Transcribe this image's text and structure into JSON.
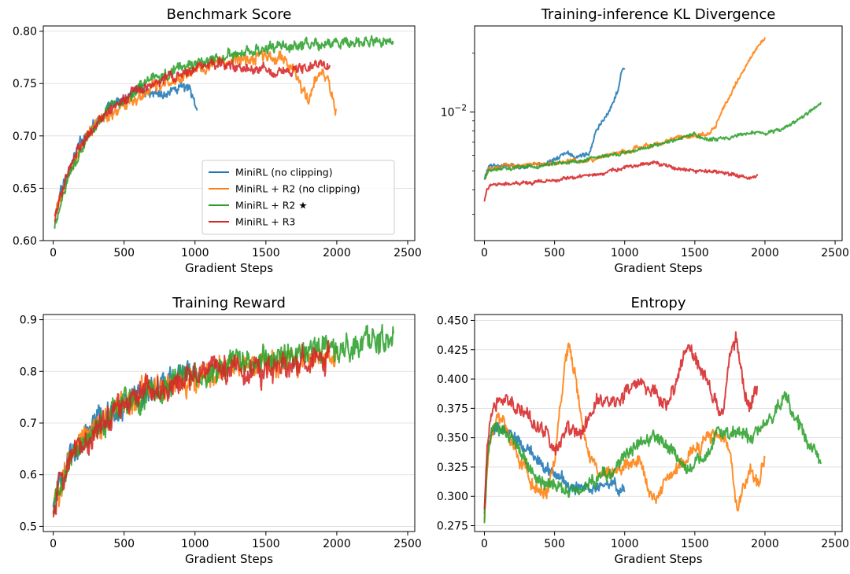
{
  "chart_data": [
    {
      "id": "benchmark",
      "type": "line",
      "title": "Benchmark Score",
      "xlabel": "Gradient Steps",
      "ylabel": "",
      "xlim": [
        -70,
        2550
      ],
      "ylim": [
        0.6,
        0.805
      ],
      "yscale": "linear",
      "xticks": [
        0,
        500,
        1000,
        1500,
        2000,
        2500
      ],
      "xtick_labels": [
        "0",
        "500",
        "1000",
        "1500",
        "2000",
        "2500"
      ],
      "yticks": [
        0.6,
        0.65,
        0.7,
        0.75,
        0.8
      ],
      "ytick_labels": [
        "0.60",
        "0.65",
        "0.70",
        "0.75",
        "0.80"
      ],
      "grid": "y",
      "legend": {
        "position": "lower-right",
        "entries": [
          "MiniRL (no clipping)",
          "MiniRL + R2 (no clipping)",
          "MiniRL + R2 ★",
          "MiniRL + R3"
        ]
      },
      "series": [
        {
          "name": "MiniRL (no clipping)",
          "color": "#1f77b4",
          "noise": 0.006,
          "x": [
            10,
            50,
            100,
            150,
            200,
            300,
            400,
            500,
            550,
            600,
            700,
            800,
            900,
            950,
            1000,
            1020
          ],
          "y": [
            0.62,
            0.645,
            0.665,
            0.68,
            0.695,
            0.715,
            0.725,
            0.735,
            0.74,
            0.745,
            0.742,
            0.74,
            0.748,
            0.745,
            0.73,
            0.72
          ]
        },
        {
          "name": "MiniRL + R2 (no clipping)",
          "color": "#ff7f0e",
          "noise": 0.007,
          "x": [
            10,
            50,
            100,
            200,
            300,
            400,
            500,
            600,
            700,
            800,
            900,
            1000,
            1200,
            1400,
            1600,
            1700,
            1750,
            1800,
            1850,
            1900,
            1950,
            1980,
            2000
          ],
          "y": [
            0.62,
            0.64,
            0.66,
            0.69,
            0.71,
            0.72,
            0.73,
            0.735,
            0.745,
            0.75,
            0.755,
            0.765,
            0.77,
            0.775,
            0.775,
            0.765,
            0.745,
            0.73,
            0.755,
            0.76,
            0.745,
            0.73,
            0.72
          ]
        },
        {
          "name": "MiniRL + R2 ★",
          "color": "#2ca02c",
          "noise": 0.006,
          "x": [
            10,
            50,
            100,
            200,
            300,
            400,
            500,
            600,
            700,
            800,
            900,
            1000,
            1200,
            1400,
            1600,
            1800,
            2000,
            2200,
            2300,
            2400
          ],
          "y": [
            0.61,
            0.635,
            0.66,
            0.69,
            0.71,
            0.725,
            0.735,
            0.745,
            0.755,
            0.76,
            0.765,
            0.77,
            0.775,
            0.78,
            0.785,
            0.785,
            0.79,
            0.79,
            0.792,
            0.79
          ]
        },
        {
          "name": "MiniRL + R3",
          "color": "#d62728",
          "noise": 0.006,
          "x": [
            10,
            50,
            100,
            200,
            300,
            400,
            500,
            600,
            700,
            800,
            900,
            1000,
            1200,
            1400,
            1600,
            1800,
            1900,
            1950
          ],
          "y": [
            0.62,
            0.64,
            0.665,
            0.695,
            0.71,
            0.725,
            0.735,
            0.742,
            0.75,
            0.755,
            0.758,
            0.765,
            0.768,
            0.765,
            0.762,
            0.765,
            0.768,
            0.765
          ]
        }
      ]
    },
    {
      "id": "kl",
      "type": "line",
      "title": "Training-inference KL Divergence",
      "xlabel": "Gradient Steps",
      "ylabel": "",
      "xlim": [
        -70,
        2550
      ],
      "ylim": [
        0.0022,
        0.0275
      ],
      "yscale": "log",
      "xticks": [
        0,
        500,
        1000,
        1500,
        2000,
        2500
      ],
      "xtick_labels": [
        "0",
        "500",
        "1000",
        "1500",
        "2000",
        "2500"
      ],
      "major_yticks": [
        0.01
      ],
      "ytick_labels": [
        "10−2"
      ],
      "minor_yticks": [
        0.003,
        0.004,
        0.005,
        0.006,
        0.007,
        0.008,
        0.009,
        0.02
      ],
      "grid": "none",
      "series": [
        {
          "name": "MiniRL (no clipping)",
          "color": "#1f77b4",
          "noise": 0.03,
          "x": [
            0,
            30,
            100,
            200,
            300,
            400,
            500,
            550,
            600,
            650,
            700,
            750,
            800,
            850,
            900,
            950,
            980,
            1000
          ],
          "y": [
            0.0045,
            0.0052,
            0.0053,
            0.0053,
            0.0052,
            0.0054,
            0.0057,
            0.006,
            0.0061,
            0.0059,
            0.006,
            0.0062,
            0.008,
            0.009,
            0.0105,
            0.013,
            0.0165,
            0.017
          ]
        },
        {
          "name": "MiniRL + R2 (no clipping)",
          "color": "#ff7f0e",
          "noise": 0.03,
          "x": [
            0,
            30,
            100,
            200,
            400,
            600,
            700,
            800,
            1000,
            1200,
            1400,
            1500,
            1600,
            1650,
            1700,
            1750,
            1800,
            1850,
            1900,
            1950,
            2000
          ],
          "y": [
            0.0045,
            0.0052,
            0.0052,
            0.0053,
            0.0054,
            0.0056,
            0.0056,
            0.0058,
            0.0063,
            0.0068,
            0.0074,
            0.0075,
            0.0077,
            0.0085,
            0.0105,
            0.012,
            0.014,
            0.0165,
            0.019,
            0.022,
            0.024
          ]
        },
        {
          "name": "MiniRL + R2 ★",
          "color": "#2ca02c",
          "noise": 0.025,
          "x": [
            0,
            30,
            100,
            200,
            400,
            600,
            800,
            1000,
            1200,
            1400,
            1500,
            1600,
            1700,
            1800,
            1900,
            2000,
            2100,
            2200,
            2300,
            2400
          ],
          "y": [
            0.0045,
            0.005,
            0.0052,
            0.0052,
            0.0053,
            0.0055,
            0.0058,
            0.0062,
            0.0067,
            0.0074,
            0.0077,
            0.0071,
            0.0073,
            0.0075,
            0.0077,
            0.0078,
            0.008,
            0.0088,
            0.0098,
            0.011
          ]
        },
        {
          "name": "MiniRL + R3",
          "color": "#d62728",
          "noise": 0.025,
          "x": [
            0,
            20,
            50,
            100,
            200,
            400,
            600,
            800,
            1000,
            1100,
            1200,
            1300,
            1400,
            1500,
            1600,
            1700,
            1800,
            1900,
            1950
          ],
          "y": [
            0.0035,
            0.004,
            0.0042,
            0.0042,
            0.0043,
            0.0044,
            0.0046,
            0.0048,
            0.0051,
            0.0054,
            0.0055,
            0.0053,
            0.0051,
            0.005,
            0.005,
            0.0049,
            0.0047,
            0.0046,
            0.0047
          ]
        }
      ]
    },
    {
      "id": "reward",
      "type": "line",
      "title": "Training Reward",
      "xlabel": "Gradient Steps",
      "ylabel": "",
      "xlim": [
        -70,
        2550
      ],
      "ylim": [
        0.49,
        0.91
      ],
      "yscale": "linear",
      "xticks": [
        0,
        500,
        1000,
        1500,
        2000,
        2500
      ],
      "xtick_labels": [
        "0",
        "500",
        "1000",
        "1500",
        "2000",
        "2500"
      ],
      "yticks": [
        0.5,
        0.6,
        0.7,
        0.8,
        0.9
      ],
      "ytick_labels": [
        "0.5",
        "0.6",
        "0.7",
        "0.8",
        "0.9"
      ],
      "grid": "y",
      "series": [
        {
          "name": "MiniRL (no clipping)",
          "color": "#1f77b4",
          "noise": 0.03,
          "x": [
            0,
            50,
            100,
            200,
            300,
            400,
            500,
            600,
            700,
            800,
            900,
            1000
          ],
          "y": [
            0.53,
            0.58,
            0.62,
            0.66,
            0.69,
            0.715,
            0.735,
            0.755,
            0.765,
            0.775,
            0.785,
            0.79
          ]
        },
        {
          "name": "MiniRL + R2 (no clipping)",
          "color": "#ff7f0e",
          "noise": 0.03,
          "x": [
            0,
            50,
            100,
            200,
            300,
            400,
            500,
            600,
            800,
            1000,
            1200,
            1400,
            1600,
            1800,
            2000
          ],
          "y": [
            0.53,
            0.58,
            0.62,
            0.66,
            0.69,
            0.715,
            0.735,
            0.755,
            0.775,
            0.795,
            0.805,
            0.815,
            0.82,
            0.825,
            0.83
          ]
        },
        {
          "name": "MiniRL + R2 ★",
          "color": "#2ca02c",
          "noise": 0.03,
          "x": [
            0,
            50,
            100,
            200,
            300,
            400,
            500,
            600,
            800,
            1000,
            1200,
            1400,
            1600,
            1800,
            2000,
            2200,
            2400
          ],
          "y": [
            0.53,
            0.58,
            0.62,
            0.66,
            0.69,
            0.715,
            0.735,
            0.755,
            0.775,
            0.795,
            0.805,
            0.815,
            0.825,
            0.835,
            0.845,
            0.855,
            0.86
          ]
        },
        {
          "name": "MiniRL + R3",
          "color": "#d62728",
          "noise": 0.03,
          "x": [
            0,
            50,
            100,
            200,
            300,
            400,
            500,
            600,
            800,
            1000,
            1200,
            1400,
            1600,
            1800,
            1950
          ],
          "y": [
            0.53,
            0.58,
            0.62,
            0.66,
            0.69,
            0.715,
            0.735,
            0.755,
            0.775,
            0.79,
            0.8,
            0.805,
            0.81,
            0.815,
            0.82
          ]
        }
      ]
    },
    {
      "id": "entropy",
      "type": "line",
      "title": "Entropy",
      "xlabel": "Gradient Steps",
      "ylabel": "",
      "xlim": [
        -70,
        2550
      ],
      "ylim": [
        0.27,
        0.455
      ],
      "yscale": "linear",
      "xticks": [
        0,
        500,
        1000,
        1500,
        2000,
        2500
      ],
      "xtick_labels": [
        "0",
        "500",
        "1000",
        "1500",
        "2000",
        "2500"
      ],
      "yticks": [
        0.275,
        0.3,
        0.325,
        0.35,
        0.375,
        0.4,
        0.425,
        0.45
      ],
      "ytick_labels": [
        "0.275",
        "0.300",
        "0.325",
        "0.350",
        "0.375",
        "0.400",
        "0.425",
        "0.450"
      ],
      "grid": "y",
      "series": [
        {
          "name": "MiniRL (no clipping)",
          "color": "#1f77b4",
          "noise": 0.006,
          "x": [
            0,
            20,
            50,
            100,
            200,
            300,
            400,
            500,
            600,
            700,
            800,
            900,
            1000
          ],
          "y": [
            0.285,
            0.33,
            0.35,
            0.36,
            0.35,
            0.34,
            0.33,
            0.32,
            0.31,
            0.305,
            0.31,
            0.31,
            0.305
          ]
        },
        {
          "name": "MiniRL + R2 (no clipping)",
          "color": "#ff7f0e",
          "noise": 0.007,
          "x": [
            0,
            20,
            50,
            100,
            200,
            300,
            350,
            400,
            450,
            500,
            550,
            600,
            650,
            700,
            800,
            900,
            1000,
            1100,
            1200,
            1300,
            1400,
            1500,
            1600,
            1700,
            1750,
            1800,
            1900,
            1950,
            2000
          ],
          "y": [
            0.28,
            0.33,
            0.36,
            0.37,
            0.345,
            0.32,
            0.305,
            0.3,
            0.305,
            0.33,
            0.39,
            0.43,
            0.4,
            0.355,
            0.32,
            0.32,
            0.33,
            0.33,
            0.295,
            0.315,
            0.33,
            0.34,
            0.35,
            0.355,
            0.34,
            0.29,
            0.325,
            0.31,
            0.33
          ]
        },
        {
          "name": "MiniRL + R2 ★",
          "color": "#2ca02c",
          "noise": 0.007,
          "x": [
            0,
            20,
            50,
            100,
            200,
            300,
            350,
            400,
            500,
            600,
            700,
            800,
            900,
            1000,
            1100,
            1200,
            1300,
            1400,
            1500,
            1600,
            1700,
            1800,
            1900,
            2000,
            2100,
            2150,
            2200,
            2300,
            2400
          ],
          "y": [
            0.28,
            0.33,
            0.355,
            0.36,
            0.35,
            0.33,
            0.32,
            0.31,
            0.31,
            0.305,
            0.31,
            0.315,
            0.32,
            0.335,
            0.345,
            0.35,
            0.345,
            0.33,
            0.325,
            0.34,
            0.355,
            0.355,
            0.35,
            0.36,
            0.375,
            0.39,
            0.37,
            0.345,
            0.33
          ]
        },
        {
          "name": "MiniRL + R3",
          "color": "#d62728",
          "noise": 0.007,
          "x": [
            0,
            20,
            50,
            100,
            200,
            300,
            400,
            500,
            550,
            600,
            700,
            800,
            900,
            1000,
            1100,
            1200,
            1300,
            1400,
            1450,
            1500,
            1550,
            1600,
            1700,
            1750,
            1800,
            1850,
            1900,
            1950
          ],
          "y": [
            0.285,
            0.34,
            0.37,
            0.385,
            0.375,
            0.37,
            0.36,
            0.34,
            0.35,
            0.36,
            0.355,
            0.38,
            0.38,
            0.39,
            0.4,
            0.39,
            0.375,
            0.41,
            0.43,
            0.42,
            0.41,
            0.395,
            0.37,
            0.42,
            0.435,
            0.39,
            0.375,
            0.395
          ]
        }
      ]
    }
  ]
}
